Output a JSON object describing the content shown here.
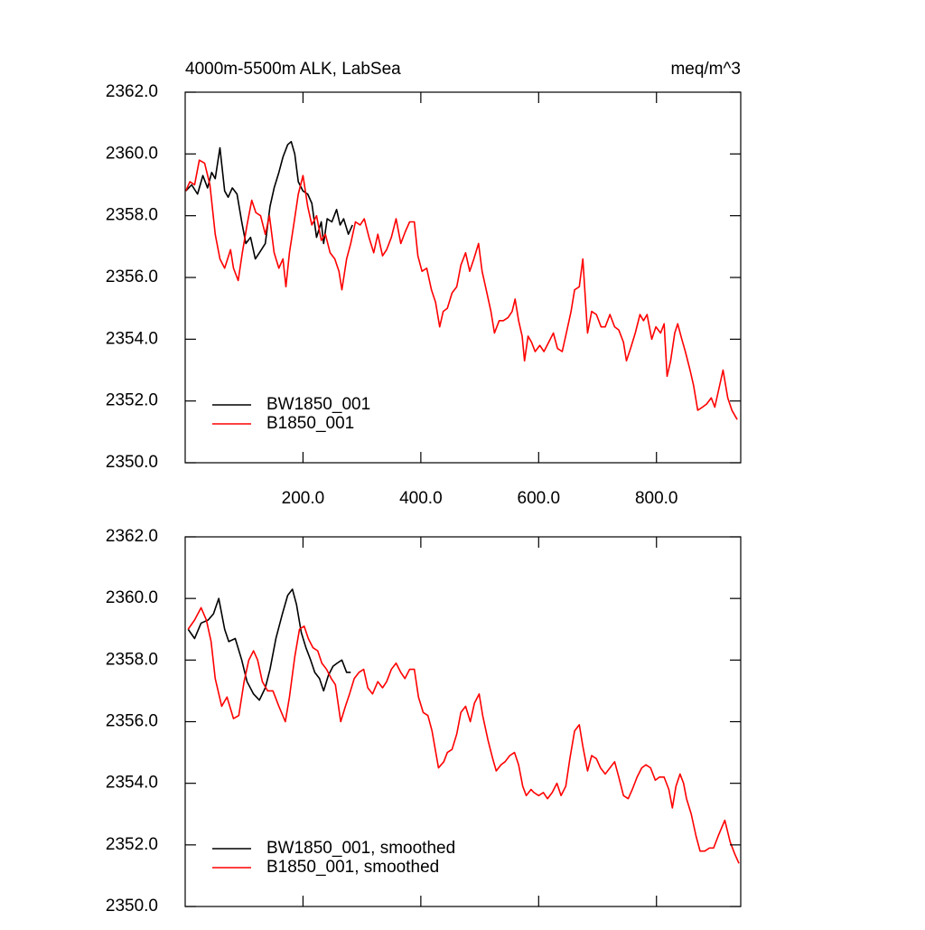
{
  "chart_data": [
    {
      "type": "line",
      "title": "4000m-5500m ALK, LabSea",
      "units": "meq/m^3",
      "xlim": [
        0,
        943
      ],
      "ylim": [
        2350,
        2362
      ],
      "xticks": [
        {
          "value": 200,
          "label": "200.0"
        },
        {
          "value": 400,
          "label": "400.0"
        },
        {
          "value": 600,
          "label": "600.0"
        },
        {
          "value": 800,
          "label": "800.0"
        }
      ],
      "yticks": [
        {
          "value": 2350,
          "label": "2350.0"
        },
        {
          "value": 2352,
          "label": "2352.0"
        },
        {
          "value": 2354,
          "label": "2354.0"
        },
        {
          "value": 2356,
          "label": "2356.0"
        },
        {
          "value": 2358,
          "label": "2358.0"
        },
        {
          "value": 2360,
          "label": "2360.0"
        },
        {
          "value": 2362,
          "label": "2362.0"
        }
      ],
      "legend": "lower left",
      "series": [
        {
          "name": "BW1850_001",
          "color": "#000000",
          "x": [
            1,
            11,
            21,
            30,
            38,
            45,
            51,
            59,
            67,
            73,
            80,
            88,
            96,
            103,
            111,
            119,
            126,
            136,
            144,
            151,
            159,
            166,
            174,
            180,
            186,
            192,
            200,
            208,
            215,
            223,
            231,
            235,
            241,
            249,
            257,
            263,
            269,
            277,
            284
          ],
          "values": [
            2358.8,
            2359.0,
            2358.7,
            2359.3,
            2358.9,
            2359.4,
            2359.2,
            2360.2,
            2358.8,
            2358.6,
            2358.9,
            2358.7,
            2357.8,
            2357.1,
            2357.3,
            2356.6,
            2356.8,
            2357.1,
            2358.3,
            2358.9,
            2359.4,
            2359.9,
            2360.3,
            2360.4,
            2360.0,
            2359.1,
            2358.8,
            2358.7,
            2358.4,
            2357.3,
            2357.8,
            2357.1,
            2357.9,
            2357.8,
            2358.2,
            2357.7,
            2357.9,
            2357.4,
            2357.7
          ]
        },
        {
          "name": "B1850_001",
          "color": "#ff0000",
          "x": [
            1,
            8,
            16,
            24,
            33,
            42,
            51,
            59,
            67,
            77,
            82,
            90,
            97,
            105,
            113,
            120,
            128,
            136,
            143,
            151,
            159,
            166,
            171,
            177,
            185,
            192,
            200,
            208,
            215,
            223,
            231,
            238,
            246,
            254,
            261,
            266,
            274,
            281,
            289,
            297,
            304,
            312,
            320,
            327,
            335,
            342,
            350,
            358,
            366,
            374,
            381,
            389,
            395,
            402,
            410,
            418,
            425,
            432,
            438,
            445,
            453,
            461,
            468,
            476,
            483,
            490,
            498,
            504,
            511,
            519,
            525,
            533,
            540,
            548,
            555,
            560,
            566,
            572,
            576,
            582,
            588,
            594,
            602,
            609,
            617,
            625,
            632,
            640,
            647,
            655,
            661,
            669,
            675,
            683,
            690,
            698,
            706,
            713,
            721,
            729,
            736,
            744,
            749,
            756,
            764,
            772,
            778,
            784,
            792,
            799,
            807,
            813,
            818,
            824,
            831,
            836,
            843,
            849,
            857,
            863,
            870,
            878,
            885,
            893,
            899,
            906,
            913,
            921,
            928,
            937
          ],
          "values": [
            2358.8,
            2359.1,
            2359.0,
            2359.8,
            2359.7,
            2359.0,
            2357.4,
            2356.6,
            2356.3,
            2356.9,
            2356.3,
            2355.9,
            2356.8,
            2357.7,
            2358.5,
            2358.1,
            2358.0,
            2357.4,
            2358.0,
            2356.8,
            2356.3,
            2356.6,
            2355.7,
            2356.8,
            2357.8,
            2358.7,
            2359.3,
            2358.3,
            2357.7,
            2358.0,
            2357.2,
            2357.4,
            2356.8,
            2356.6,
            2356.2,
            2355.6,
            2356.6,
            2357.1,
            2357.8,
            2357.7,
            2357.9,
            2357.3,
            2356.8,
            2357.4,
            2356.7,
            2356.9,
            2357.3,
            2357.9,
            2357.1,
            2357.5,
            2357.8,
            2357.8,
            2356.7,
            2356.2,
            2356.3,
            2355.6,
            2355.2,
            2354.4,
            2354.9,
            2355.0,
            2355.5,
            2355.7,
            2356.4,
            2356.8,
            2356.2,
            2356.6,
            2357.1,
            2356.2,
            2355.6,
            2354.9,
            2354.2,
            2354.6,
            2354.6,
            2354.7,
            2354.9,
            2355.3,
            2354.6,
            2354.1,
            2353.3,
            2354.1,
            2353.9,
            2353.6,
            2353.8,
            2353.6,
            2353.9,
            2354.2,
            2353.7,
            2353.6,
            2354.2,
            2354.9,
            2355.6,
            2355.7,
            2356.6,
            2354.2,
            2354.9,
            2354.8,
            2354.4,
            2354.4,
            2354.8,
            2354.4,
            2354.3,
            2353.9,
            2353.3,
            2353.7,
            2354.2,
            2354.8,
            2354.6,
            2354.8,
            2354.0,
            2354.4,
            2354.2,
            2354.5,
            2352.8,
            2353.3,
            2354.2,
            2354.5,
            2354.0,
            2353.6,
            2353.0,
            2352.5,
            2351.7,
            2351.8,
            2351.9,
            2352.1,
            2351.8,
            2352.4,
            2353.0,
            2352.1,
            2351.7,
            2351.4
          ]
        }
      ]
    },
    {
      "type": "line",
      "xlim": [
        0,
        943
      ],
      "ylim": [
        2350,
        2362
      ],
      "xticks": [
        200,
        400,
        600,
        800
      ],
      "yticks": [
        {
          "value": 2350,
          "label": "2350.0"
        },
        {
          "value": 2352,
          "label": "2352.0"
        },
        {
          "value": 2354,
          "label": "2354.0"
        },
        {
          "value": 2356,
          "label": "2356.0"
        },
        {
          "value": 2358,
          "label": "2358.0"
        },
        {
          "value": 2360,
          "label": "2360.0"
        },
        {
          "value": 2362,
          "label": "2362.0"
        }
      ],
      "legend": "lower left",
      "series": [
        {
          "name": "BW1850_001, smoothed",
          "color": "#000000",
          "x": [
            5,
            16,
            27,
            39,
            48,
            57,
            67,
            74,
            85,
            96,
            105,
            116,
            126,
            136,
            144,
            154,
            165,
            174,
            182,
            189,
            197,
            205,
            213,
            220,
            228,
            235,
            243,
            251,
            258,
            266,
            274,
            281
          ],
          "values": [
            2359.0,
            2358.7,
            2359.2,
            2359.3,
            2359.5,
            2360.0,
            2359.0,
            2358.6,
            2358.7,
            2358.0,
            2357.3,
            2356.9,
            2356.7,
            2357.1,
            2357.7,
            2358.7,
            2359.5,
            2360.1,
            2360.3,
            2359.8,
            2358.9,
            2358.4,
            2358.0,
            2357.6,
            2357.4,
            2357.0,
            2357.5,
            2357.8,
            2357.9,
            2358.0,
            2357.6,
            2357.6
          ]
        },
        {
          "name": "B1850_001, smoothed",
          "color": "#ff0000",
          "x": [
            5,
            16,
            27,
            36,
            44,
            51,
            62,
            71,
            82,
            91,
            100,
            108,
            116,
            123,
            131,
            140,
            149,
            159,
            170,
            177,
            186,
            194,
            202,
            209,
            217,
            225,
            232,
            240,
            248,
            255,
            264,
            272,
            279,
            287,
            295,
            303,
            310,
            318,
            327,
            335,
            342,
            350,
            358,
            366,
            373,
            381,
            389,
            396,
            404,
            412,
            419,
            430,
            439,
            445,
            453,
            461,
            468,
            476,
            484,
            491,
            499,
            505,
            514,
            522,
            528,
            536,
            543,
            551,
            559,
            566,
            573,
            579,
            587,
            592,
            600,
            608,
            615,
            623,
            631,
            638,
            646,
            653,
            661,
            669,
            675,
            683,
            690,
            698,
            705,
            713,
            721,
            729,
            736,
            744,
            752,
            759,
            767,
            775,
            782,
            790,
            798,
            805,
            813,
            821,
            827,
            833,
            840,
            846,
            851,
            859,
            867,
            874,
            882,
            890,
            897,
            905,
            916,
            925,
            933,
            940
          ],
          "values": [
            2359.0,
            2359.3,
            2359.7,
            2359.3,
            2358.6,
            2357.4,
            2356.5,
            2356.8,
            2356.1,
            2356.2,
            2357.3,
            2358.0,
            2358.3,
            2358.0,
            2357.3,
            2357.0,
            2357.0,
            2356.5,
            2356.0,
            2356.8,
            2358.1,
            2359.0,
            2359.1,
            2358.7,
            2358.4,
            2358.3,
            2357.9,
            2357.7,
            2357.4,
            2357.2,
            2356.0,
            2356.5,
            2356.9,
            2357.4,
            2357.6,
            2357.7,
            2357.1,
            2356.9,
            2357.3,
            2357.1,
            2357.3,
            2357.7,
            2357.9,
            2357.6,
            2357.4,
            2357.7,
            2357.7,
            2356.8,
            2356.3,
            2356.2,
            2355.7,
            2354.5,
            2354.7,
            2355.0,
            2355.1,
            2355.6,
            2356.3,
            2356.5,
            2356.0,
            2356.6,
            2356.9,
            2356.2,
            2355.4,
            2354.8,
            2354.4,
            2354.6,
            2354.7,
            2354.9,
            2355.0,
            2354.6,
            2353.9,
            2353.6,
            2353.8,
            2353.7,
            2353.6,
            2353.7,
            2353.5,
            2353.7,
            2354.0,
            2353.6,
            2353.9,
            2354.8,
            2355.7,
            2355.9,
            2355.2,
            2354.4,
            2354.9,
            2354.8,
            2354.5,
            2354.3,
            2354.5,
            2354.7,
            2354.2,
            2353.6,
            2353.5,
            2353.8,
            2354.2,
            2354.5,
            2354.6,
            2354.5,
            2354.1,
            2354.2,
            2354.2,
            2353.8,
            2353.2,
            2353.9,
            2354.3,
            2354.0,
            2353.5,
            2353.0,
            2352.3,
            2351.8,
            2351.8,
            2351.9,
            2351.9,
            2352.3,
            2352.8,
            2352.1,
            2351.7,
            2351.4
          ]
        }
      ]
    }
  ]
}
